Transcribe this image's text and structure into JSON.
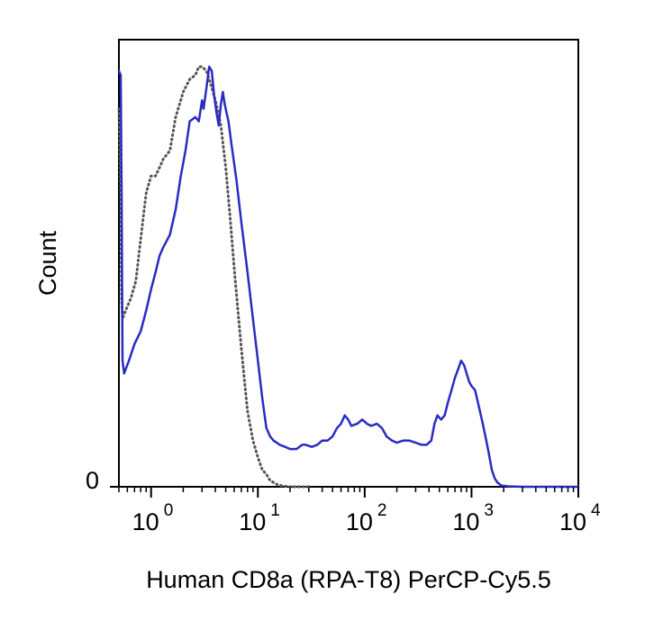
{
  "chart_data": {
    "type": "line",
    "title": "",
    "xlabel": "Human CD8a (RPA-T8) PerCP-Cy5.5",
    "ylabel": "Count",
    "x_scale": "log",
    "xlim": [
      0.5,
      10000
    ],
    "ylim": [
      0,
      100
    ],
    "grid": false,
    "legend": "none",
    "x_ticks": [
      {
        "base": "10",
        "exp": "0",
        "value": 1
      },
      {
        "base": "10",
        "exp": "1",
        "value": 10
      },
      {
        "base": "10",
        "exp": "2",
        "value": 100
      },
      {
        "base": "10",
        "exp": "3",
        "value": 1000
      },
      {
        "base": "10",
        "exp": "4",
        "value": 10000
      }
    ],
    "y_ticks": [
      {
        "label": "0",
        "value": 0
      }
    ],
    "series": [
      {
        "style": "solid",
        "color": "#2b2bc4",
        "points": [
          [
            0.5,
            99
          ],
          [
            0.52,
            98
          ],
          [
            0.53,
            70
          ],
          [
            0.54,
            30
          ],
          [
            0.56,
            27
          ],
          [
            0.62,
            30
          ],
          [
            0.7,
            34
          ],
          [
            0.8,
            37
          ],
          [
            0.9,
            42
          ],
          [
            1.0,
            47
          ],
          [
            1.1,
            51
          ],
          [
            1.2,
            55
          ],
          [
            1.3,
            57
          ],
          [
            1.5,
            60
          ],
          [
            1.7,
            66
          ],
          [
            1.9,
            74
          ],
          [
            2.1,
            80
          ],
          [
            2.3,
            87
          ],
          [
            2.6,
            88
          ],
          [
            2.8,
            87
          ],
          [
            3.0,
            92
          ],
          [
            3.1,
            90
          ],
          [
            3.3,
            95
          ],
          [
            3.5,
            100
          ],
          [
            3.7,
            99
          ],
          [
            3.9,
            93
          ],
          [
            4.1,
            89
          ],
          [
            4.3,
            86
          ],
          [
            4.5,
            91
          ],
          [
            4.7,
            94
          ],
          [
            4.9,
            91
          ],
          [
            5.3,
            87
          ],
          [
            5.7,
            81
          ],
          [
            6.3,
            73
          ],
          [
            7.0,
            63
          ],
          [
            8.0,
            51
          ],
          [
            9.0,
            40
          ],
          [
            10,
            30
          ],
          [
            11,
            21
          ],
          [
            12,
            14
          ],
          [
            13,
            12
          ],
          [
            14,
            11
          ],
          [
            16,
            10
          ],
          [
            18,
            9.5
          ],
          [
            20,
            9
          ],
          [
            23,
            9
          ],
          [
            26,
            10
          ],
          [
            28,
            10
          ],
          [
            32,
            9.5
          ],
          [
            36,
            10
          ],
          [
            40,
            11
          ],
          [
            45,
            11
          ],
          [
            50,
            12
          ],
          [
            55,
            14
          ],
          [
            60,
            15
          ],
          [
            65,
            17
          ],
          [
            70,
            16
          ],
          [
            75,
            14.5
          ],
          [
            85,
            15
          ],
          [
            95,
            16
          ],
          [
            105,
            15
          ],
          [
            115,
            14.5
          ],
          [
            130,
            15
          ],
          [
            145,
            14
          ],
          [
            160,
            12
          ],
          [
            180,
            11
          ],
          [
            200,
            10.5
          ],
          [
            230,
            11
          ],
          [
            260,
            11
          ],
          [
            300,
            10.5
          ],
          [
            340,
            10
          ],
          [
            380,
            10
          ],
          [
            420,
            11
          ],
          [
            450,
            15
          ],
          [
            480,
            17
          ],
          [
            520,
            16
          ],
          [
            560,
            17
          ],
          [
            600,
            20
          ],
          [
            650,
            23
          ],
          [
            700,
            26
          ],
          [
            750,
            28
          ],
          [
            800,
            30
          ],
          [
            850,
            29
          ],
          [
            900,
            27
          ],
          [
            950,
            25
          ],
          [
            1000,
            24
          ],
          [
            1080,
            23
          ],
          [
            1150,
            20
          ],
          [
            1250,
            16
          ],
          [
            1350,
            12
          ],
          [
            1450,
            8
          ],
          [
            1550,
            4
          ],
          [
            1650,
            2
          ],
          [
            1750,
            1
          ],
          [
            1900,
            0.3
          ],
          [
            2200,
            0.1
          ],
          [
            3000,
            0
          ],
          [
            5000,
            0
          ],
          [
            10000,
            0
          ]
        ]
      },
      {
        "style": "dotted",
        "color": "#555555",
        "points": [
          [
            0.5,
            90
          ],
          [
            0.52,
            70
          ],
          [
            0.53,
            45
          ],
          [
            0.54,
            40
          ],
          [
            0.58,
            42
          ],
          [
            0.65,
            45
          ],
          [
            0.72,
            49
          ],
          [
            0.8,
            59
          ],
          [
            0.9,
            70
          ],
          [
            1.0,
            74
          ],
          [
            1.1,
            74
          ],
          [
            1.2,
            76
          ],
          [
            1.3,
            78
          ],
          [
            1.5,
            80
          ],
          [
            1.7,
            88
          ],
          [
            2.0,
            94
          ],
          [
            2.3,
            97
          ],
          [
            2.6,
            98
          ],
          [
            2.8,
            100
          ],
          [
            3.0,
            100
          ],
          [
            3.3,
            99
          ],
          [
            3.6,
            96
          ],
          [
            4.0,
            92
          ],
          [
            4.5,
            86
          ],
          [
            5.0,
            76
          ],
          [
            5.5,
            64
          ],
          [
            6.0,
            52
          ],
          [
            6.5,
            42
          ],
          [
            7.0,
            33
          ],
          [
            7.5,
            25
          ],
          [
            8.0,
            18
          ],
          [
            9.0,
            11
          ],
          [
            10,
            7
          ],
          [
            11,
            4
          ],
          [
            12,
            3
          ],
          [
            13,
            1.5
          ],
          [
            15,
            0.6
          ],
          [
            17,
            0.2
          ],
          [
            20,
            0
          ],
          [
            30,
            0
          ]
        ]
      }
    ]
  }
}
